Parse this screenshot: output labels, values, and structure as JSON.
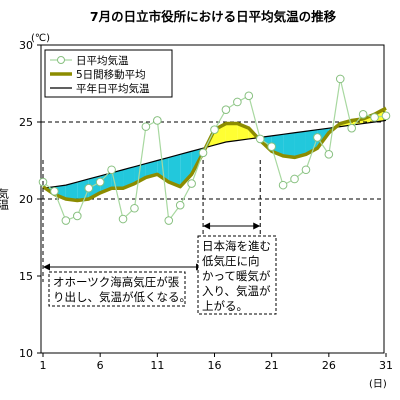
{
  "chart_data": {
    "type": "line",
    "title": "7月の日立市役所における日平均気温の推移",
    "ylabel": "気温",
    "yunit": "(℃)",
    "xunit": "(日)",
    "ylim": [
      10,
      30
    ],
    "xlim": [
      1,
      31
    ],
    "yticks": [
      10,
      15,
      20,
      25,
      30
    ],
    "xticks": [
      1,
      6,
      11,
      16,
      21,
      26,
      31
    ],
    "grid": "horizontal dashed at 20, 25",
    "legend_position": "top-left",
    "fill_colors": {
      "below_normal": "#22c8dc",
      "above_normal": "#ffff33"
    },
    "x": [
      1,
      2,
      3,
      4,
      5,
      6,
      7,
      8,
      9,
      10,
      11,
      12,
      13,
      14,
      15,
      16,
      17,
      18,
      19,
      20,
      21,
      22,
      23,
      24,
      25,
      26,
      27,
      28,
      29,
      30,
      31
    ],
    "series": [
      {
        "name": "日平均気温",
        "style": "thin line with hollow circle markers",
        "color": "#a8d8a0",
        "values": [
          21.1,
          20.5,
          18.6,
          18.9,
          20.7,
          21.1,
          21.9,
          18.7,
          19.4,
          24.7,
          25.1,
          18.6,
          19.6,
          21.0,
          23.0,
          24.5,
          25.8,
          26.3,
          26.7,
          23.9,
          23.4,
          20.9,
          21.3,
          21.9,
          24.0,
          22.9,
          27.8,
          24.6,
          25.5,
          25.3,
          25.4
        ]
      },
      {
        "name": "5日間移動平均",
        "style": "thick line",
        "color": "#8c8c00",
        "values": [
          20.8,
          20.3,
          20.0,
          19.9,
          20.0,
          20.4,
          20.7,
          20.7,
          21.0,
          21.4,
          21.6,
          21.1,
          20.8,
          21.6,
          23.0,
          24.5,
          24.9,
          24.9,
          24.6,
          23.8,
          23.1,
          22.8,
          22.7,
          22.9,
          23.3,
          24.3,
          24.9,
          25.1,
          25.2,
          25.5,
          25.9
        ]
      },
      {
        "name": "平年日平均気温",
        "style": "thin black line",
        "color": "#000000",
        "values": [
          20.7,
          20.8,
          20.9,
          21.1,
          21.3,
          21.5,
          21.7,
          21.9,
          22.1,
          22.3,
          22.5,
          22.7,
          22.9,
          23.1,
          23.3,
          23.5,
          23.7,
          23.8,
          23.9,
          24.0,
          24.1,
          24.2,
          24.3,
          24.4,
          24.5,
          24.6,
          24.7,
          24.8,
          24.9,
          25.0,
          25.1
        ]
      }
    ],
    "annotations": [
      {
        "lines": [
          "オホーツク海高気圧が張",
          "り出し、気温が低くなる。"
        ],
        "span": [
          1,
          15
        ]
      },
      {
        "lines": [
          "日本海を進む",
          "低気圧に向",
          "かって暖気が",
          "入り、気温が",
          "上がる。"
        ],
        "span": [
          15,
          20
        ]
      }
    ]
  }
}
